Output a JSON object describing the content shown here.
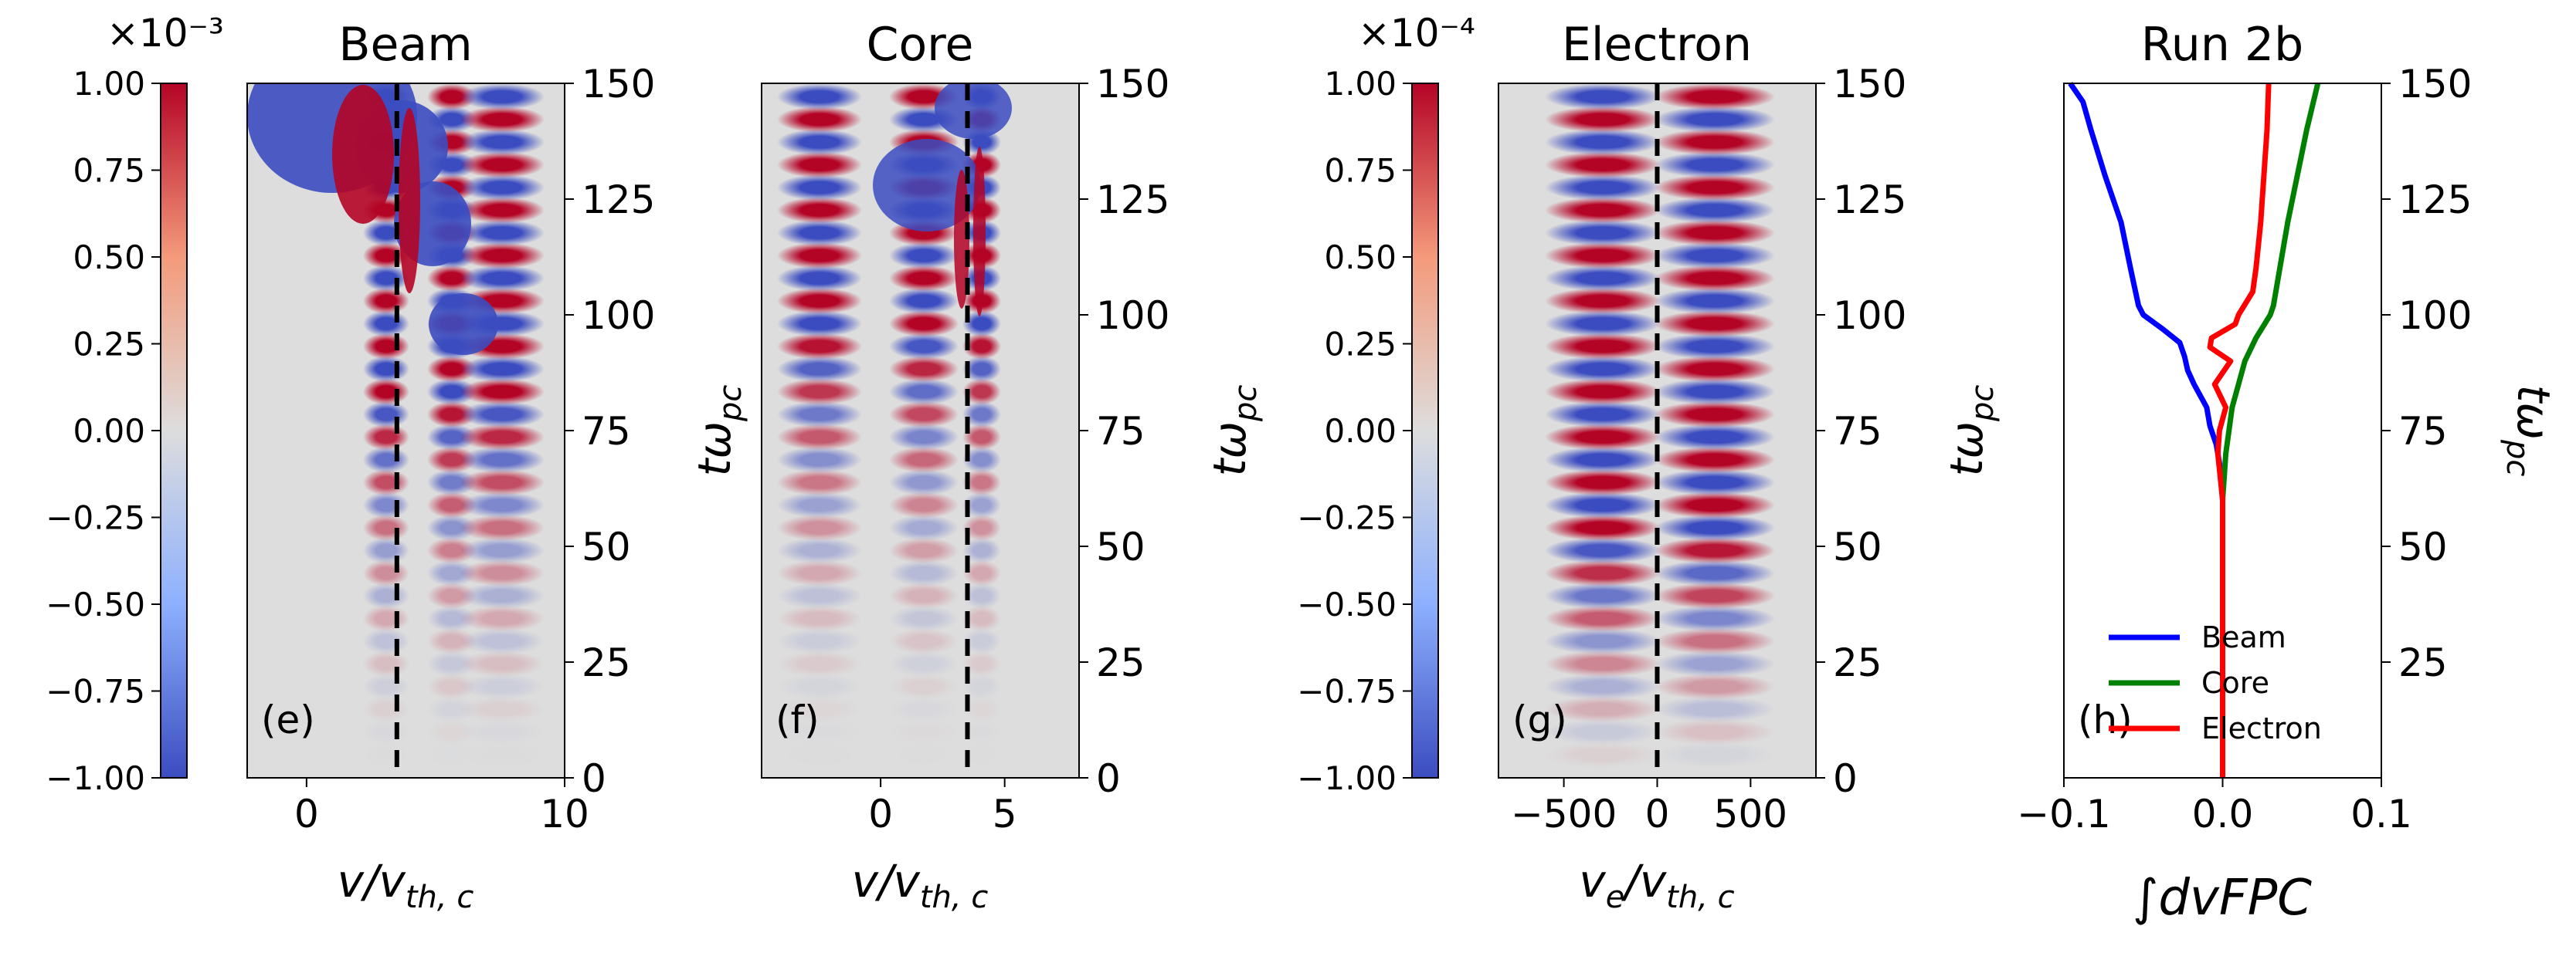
{
  "figure": {
    "cbar_exponents": [
      "×10⁻³",
      "×10⁻⁴"
    ],
    "colorbar_ticks": [
      "1.00",
      "0.75",
      "0.50",
      "0.25",
      "0.00",
      "−0.25",
      "−0.50",
      "−0.75",
      "−1.00"
    ],
    "colormap": {
      "neg": "#3b4cc0",
      "mid": "#dddddd",
      "pos": "#b40426"
    }
  },
  "chart_data": [
    {
      "type": "heatmap",
      "title": "Beam",
      "panel_label": "(e)",
      "xlabel": "v/v",
      "xlabel_sub": "th, c",
      "ylabel": "tω",
      "ylabel_sub": "pc",
      "xlim": [
        -2.3,
        10
      ],
      "ylim": [
        0,
        150
      ],
      "xticks": [
        "0",
        "10"
      ],
      "xtick_values": [
        0,
        10
      ],
      "yticks": [
        "0",
        "25",
        "50",
        "75",
        "100",
        "125",
        "150"
      ],
      "dashed_line_x": 3.5,
      "color_range": [
        -0.001,
        0.001
      ]
    },
    {
      "type": "heatmap",
      "title": "Core",
      "panel_label": "(f)",
      "xlabel": "v/v",
      "xlabel_sub": "th, c",
      "ylabel": "tω",
      "ylabel_sub": "pc",
      "xlim": [
        -4.8,
        8
      ],
      "ylim": [
        0,
        150
      ],
      "xticks": [
        "0",
        "5"
      ],
      "xtick_values": [
        0,
        5
      ],
      "yticks": [
        "0",
        "25",
        "50",
        "75",
        "100",
        "125",
        "150"
      ],
      "dashed_line_x": 3.5,
      "color_range": [
        -0.001,
        0.001
      ]
    },
    {
      "type": "heatmap",
      "title": "Electron",
      "panel_label": "(g)",
      "xlabel": "v",
      "xlabel_e": "e",
      "xlabel_rest": "/v",
      "xlabel_sub": "th, c",
      "ylabel": "tω",
      "ylabel_sub": "pc",
      "xlim": [
        -850,
        850
      ],
      "ylim": [
        0,
        150
      ],
      "xticks": [
        "−500",
        "0",
        "500"
      ],
      "xtick_values": [
        -500,
        0,
        500
      ],
      "yticks": [
        "0",
        "25",
        "50",
        "75",
        "100",
        "125",
        "150"
      ],
      "dashed_line_x": 0,
      "color_range": [
        -0.0001,
        0.0001
      ]
    },
    {
      "type": "line",
      "title": "Run 2b",
      "panel_label": "(h)",
      "xlabel": "∫dvFPC",
      "ylabel": "tω",
      "ylabel_sub": "pc",
      "xlim": [
        -0.1,
        0.1
      ],
      "ylim": [
        0,
        150
      ],
      "xticks": [
        "−0.1",
        "0.0",
        "0.1"
      ],
      "xtick_values": [
        -0.1,
        0.0,
        0.1
      ],
      "yticks": [
        "25",
        "50",
        "75",
        "100",
        "125",
        "150"
      ],
      "ytick_values": [
        25,
        50,
        75,
        100,
        125,
        150
      ],
      "series": [
        {
          "name": "Beam",
          "color": "#0000ff",
          "t": [
            0,
            40,
            60,
            68,
            72,
            76,
            80,
            85,
            88,
            91,
            94,
            97,
            100,
            102,
            110,
            120,
            130,
            140,
            146,
            150
          ],
          "values": [
            0,
            0,
            0,
            -0.002,
            -0.004,
            -0.008,
            -0.01,
            -0.018,
            -0.022,
            -0.024,
            -0.027,
            -0.038,
            -0.05,
            -0.053,
            -0.058,
            -0.064,
            -0.074,
            -0.083,
            -0.088,
            -0.096
          ]
        },
        {
          "name": "Core",
          "color": "#008000",
          "t": [
            0,
            40,
            60,
            70,
            80,
            85,
            90,
            95,
            100,
            102,
            110,
            120,
            130,
            140,
            150
          ],
          "values": [
            0,
            0,
            0,
            0.002,
            0.006,
            0.01,
            0.014,
            0.021,
            0.03,
            0.032,
            0.036,
            0.041,
            0.047,
            0.053,
            0.06
          ]
        },
        {
          "name": "Electron",
          "color": "#ff0000",
          "t": [
            0,
            50,
            60,
            70,
            75,
            80,
            85,
            90,
            93,
            95,
            98,
            100,
            105,
            110,
            120,
            130,
            140,
            150
          ],
          "values": [
            0,
            0,
            0,
            -0.003,
            -0.002,
            0.002,
            -0.005,
            0.005,
            -0.008,
            -0.007,
            0.008,
            0.01,
            0.019,
            0.021,
            0.024,
            0.026,
            0.028,
            0.029
          ]
        }
      ]
    }
  ]
}
